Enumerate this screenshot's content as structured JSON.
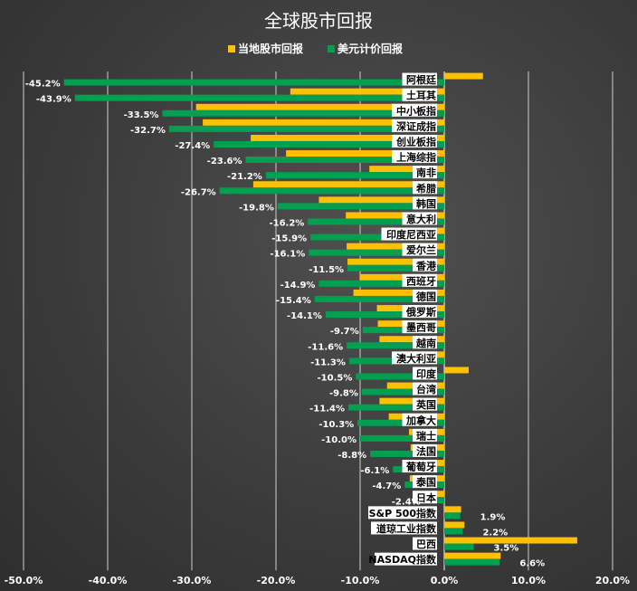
{
  "chart_data": {
    "type": "bar",
    "orientation": "horizontal",
    "title": "全球股市回报",
    "xlabel": "",
    "ylabel": "",
    "xlim": [
      -50,
      20
    ],
    "x_ticks": [
      "-50.0%",
      "-40.0%",
      "-30.0%",
      "-20.0%",
      "-10.0%",
      "0.0%",
      "10.0%",
      "20.0%"
    ],
    "x_tick_values": [
      -50,
      -40,
      -30,
      -20,
      -10,
      0,
      10,
      20
    ],
    "grid": true,
    "legend_position": "top-center",
    "categories": [
      "阿根廷",
      "土耳其",
      "中小板指",
      "深证成指",
      "创业板指",
      "上海综指",
      "南非",
      "希腊",
      "韩国",
      "意大利",
      "印度尼西亚",
      "爱尔兰",
      "香港",
      "西班牙",
      "德国",
      "俄罗斯",
      "墨西哥",
      "越南",
      "澳大利亚",
      "印度",
      "台湾",
      "英国",
      "加拿大",
      "瑞士",
      "法国",
      "葡萄牙",
      "泰国",
      "日本",
      "S&P 500指数",
      "道琼工业指数",
      "巴西",
      "NASDAQ指数"
    ],
    "series": [
      {
        "name": "当地股市回报",
        "color": "#FFC000",
        "values": [
          4.6,
          -18.3,
          -29.5,
          -28.7,
          -23.0,
          -18.8,
          -8.9,
          -22.7,
          -14.9,
          -11.7,
          -6.8,
          -11.6,
          -11.5,
          -10.0,
          -10.8,
          -8.0,
          -7.9,
          -7.7,
          -5.0,
          2.9,
          -6.8,
          -7.7,
          -6.6,
          -4.2,
          -4.0,
          -2.5,
          -4.1,
          -1.5,
          2.0,
          2.4,
          15.8,
          6.7
        ]
      },
      {
        "name": "美元计价回报",
        "color": "#00A050",
        "values": [
          -45.2,
          -43.9,
          -33.5,
          -32.7,
          -27.4,
          -23.6,
          -21.2,
          -26.7,
          -19.8,
          -16.2,
          -15.9,
          -16.1,
          -11.5,
          -14.9,
          -15.4,
          -14.1,
          -9.7,
          -11.6,
          -11.3,
          -10.5,
          -9.8,
          -11.4,
          -10.3,
          -10.0,
          -8.8,
          -6.1,
          -4.7,
          -2.4,
          1.9,
          2.2,
          3.5,
          6.6
        ],
        "labels": [
          "-45.2%",
          "-43.9%",
          "-33.5%",
          "-32.7%",
          "-27.4%",
          "-23.6%",
          "-21.2%",
          "-26.7%",
          "-19.8%",
          "-16.2%",
          "-15.9%",
          "-16.1%",
          "-11.5%",
          "-14.9%",
          "-15.4%",
          "-14.1%",
          "-9.7%",
          "-11.6%",
          "-11.3%",
          "-10.5%",
          "-9.8%",
          "-11.4%",
          "-10.3%",
          "-10.0%",
          "-8.8%",
          "-6.1%",
          "-4.7%",
          "-2.4%",
          "1.9%",
          "2.2%",
          "3.5%",
          "6.6%"
        ]
      }
    ]
  }
}
